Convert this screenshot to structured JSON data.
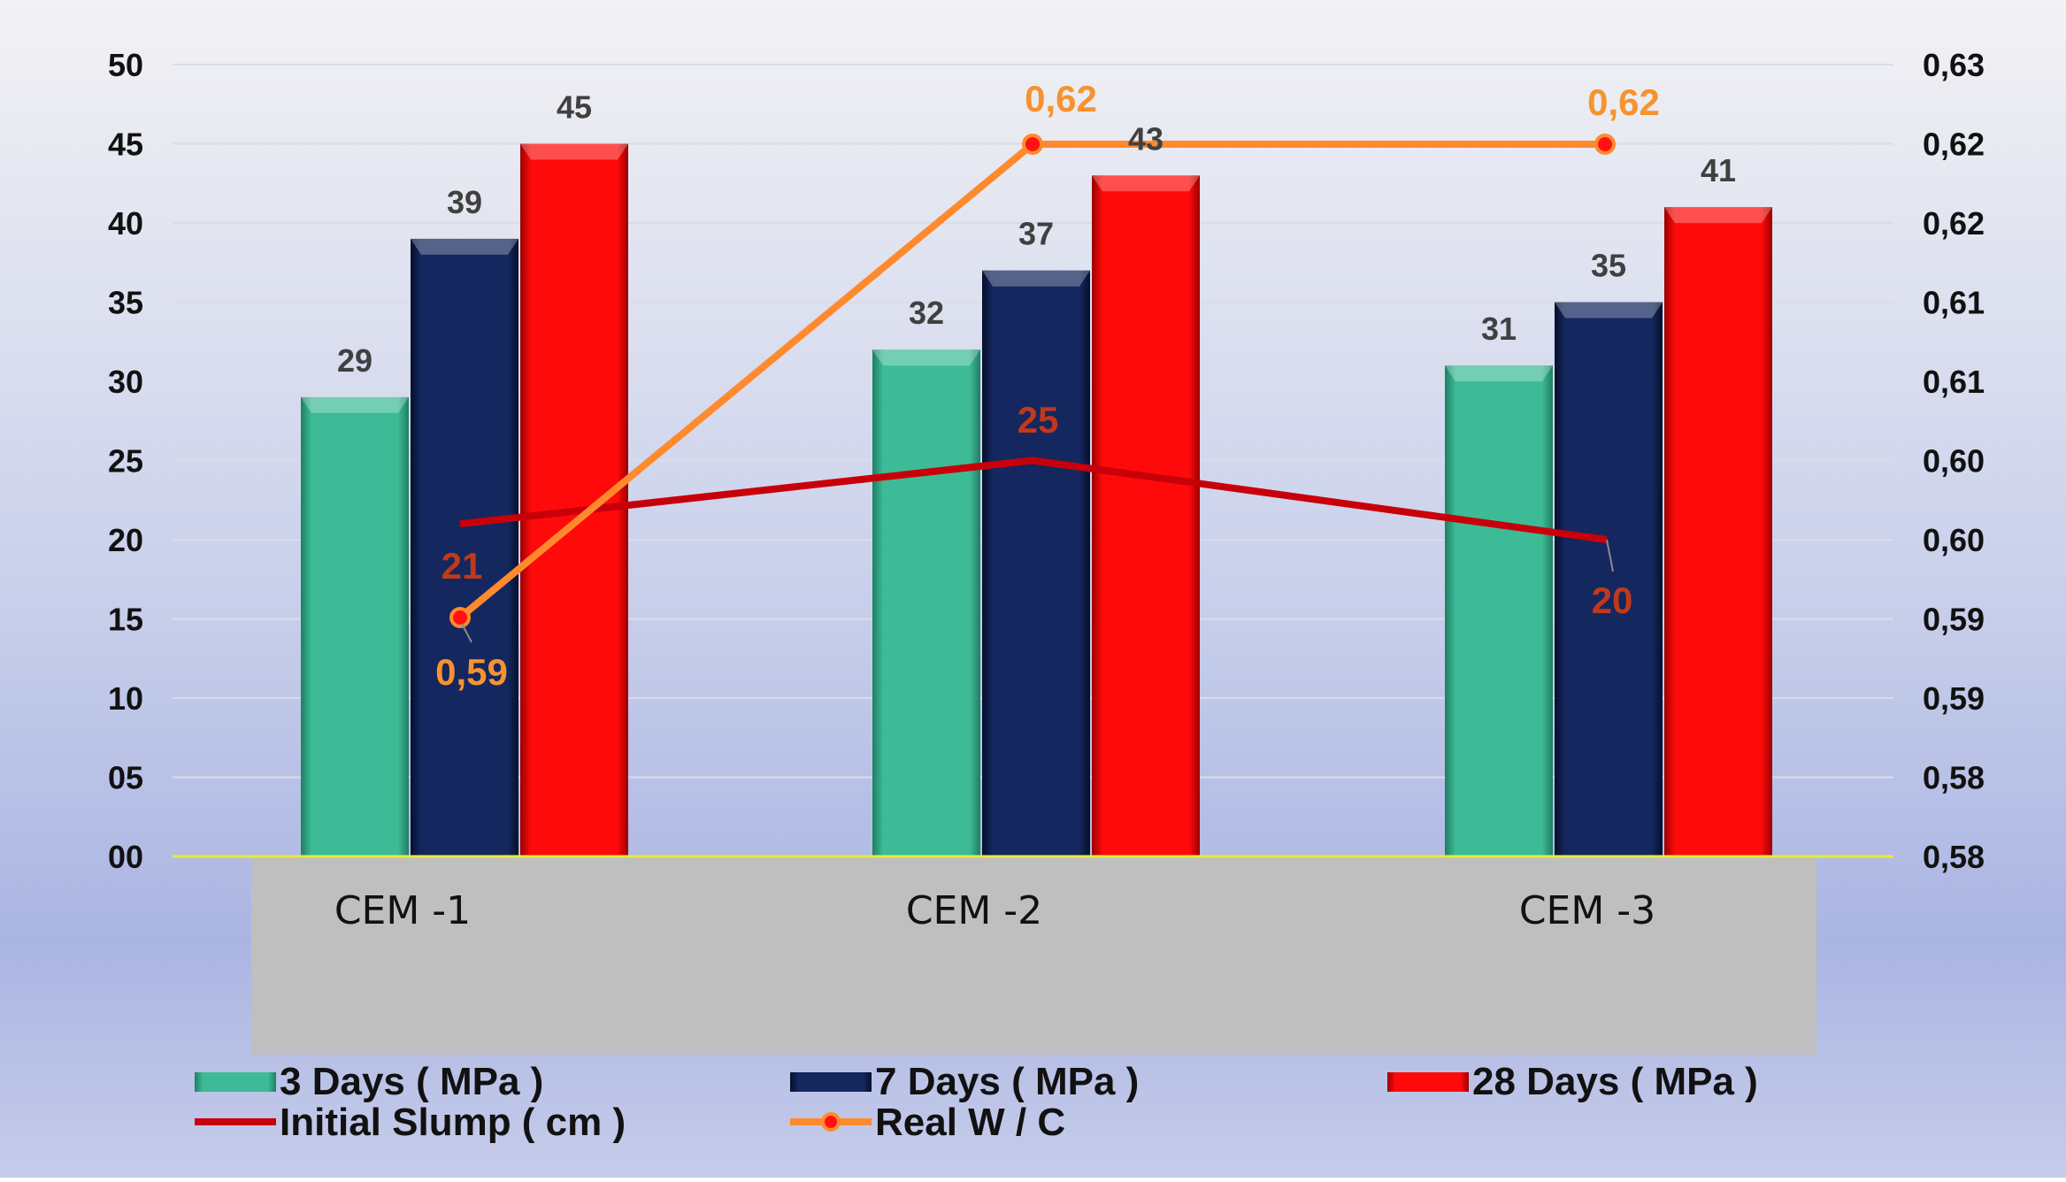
{
  "chart_data": {
    "type": "bar",
    "categories": [
      "CEM -1",
      "CEM -2",
      "CEM -3"
    ],
    "series": [
      {
        "name": "3 Days ( MPa )",
        "kind": "bar",
        "axis": "left",
        "color": "#3DBB96",
        "values": [
          29,
          32,
          31
        ],
        "labels": [
          "29",
          "32",
          "31"
        ]
      },
      {
        "name": "7 Days ( MPa )",
        "kind": "bar",
        "axis": "left",
        "color": "#14275F",
        "values": [
          39,
          37,
          35
        ],
        "labels": [
          "39",
          "37",
          "35"
        ]
      },
      {
        "name": "28 Days ( MPa )",
        "kind": "bar",
        "axis": "left",
        "color": "#FF0A0A",
        "values": [
          45,
          43,
          41
        ],
        "labels": [
          "45",
          "43",
          "41"
        ]
      },
      {
        "name": "Initial Slump ( cm )",
        "kind": "line",
        "axis": "left",
        "color": "#C8000A",
        "label_color": "#C0391B",
        "values": [
          21,
          25,
          20
        ],
        "labels": [
          "21",
          "25",
          "20"
        ]
      },
      {
        "name": "Real W / C",
        "kind": "line-marker",
        "axis": "right",
        "color": "#FF8A2E",
        "label_color": "#F7932F",
        "values": [
          0.59,
          0.62,
          0.62
        ],
        "labels": [
          "0,59",
          "0,62",
          "0,62"
        ]
      }
    ],
    "y_left": {
      "range": [
        0,
        50
      ],
      "ticks": [
        "00",
        "05",
        "10",
        "15",
        "20",
        "25",
        "30",
        "35",
        "40",
        "45",
        "50"
      ]
    },
    "y_right": {
      "range": [
        0.58,
        0.63
      ],
      "ticks": [
        "0,58",
        "0,58",
        "0,59",
        "0,59",
        "0,60",
        "0,60",
        "0,61",
        "0,61",
        "0,62",
        "0,62",
        "0,63"
      ]
    },
    "grid": true,
    "legend": "bottom",
    "title": "",
    "xlabel": "",
    "ylabel": ""
  }
}
